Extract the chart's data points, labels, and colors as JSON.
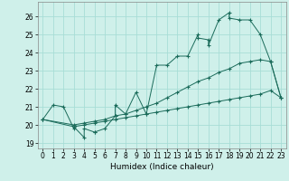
{
  "xlabel": "Humidex (Indice chaleur)",
  "bg_color": "#cff0ea",
  "grid_color": "#a8ddd6",
  "line_color": "#1a6b5a",
  "xlim": [
    -0.5,
    23.5
  ],
  "ylim": [
    18.7,
    26.8
  ],
  "yticks": [
    19,
    20,
    21,
    22,
    23,
    24,
    25,
    26
  ],
  "xticks": [
    0,
    1,
    2,
    3,
    4,
    5,
    6,
    7,
    8,
    9,
    10,
    11,
    12,
    13,
    14,
    15,
    16,
    17,
    18,
    19,
    20,
    21,
    22,
    23
  ],
  "line1_x": [
    0,
    1,
    2,
    3,
    3,
    4,
    4,
    5,
    5,
    6,
    7,
    7,
    8,
    9,
    10,
    11,
    12,
    13,
    14,
    15,
    15,
    16,
    16,
    17,
    18,
    18,
    19,
    20,
    21,
    22,
    23
  ],
  "line1_y": [
    20.3,
    21.1,
    21.0,
    19.8,
    19.9,
    19.3,
    19.8,
    19.6,
    19.6,
    19.8,
    20.5,
    21.1,
    20.6,
    21.8,
    20.6,
    23.3,
    23.3,
    23.8,
    23.8,
    25.0,
    24.8,
    24.7,
    24.4,
    25.8,
    26.2,
    25.9,
    25.8,
    25.8,
    25.0,
    23.5,
    21.5
  ],
  "line2_x": [
    0,
    3,
    4,
    5,
    6,
    7,
    8,
    9,
    10,
    11,
    12,
    13,
    14,
    15,
    16,
    17,
    18,
    19,
    20,
    21,
    22,
    23
  ],
  "line2_y": [
    20.3,
    20.0,
    20.1,
    20.2,
    20.3,
    20.5,
    20.6,
    20.8,
    21.0,
    21.2,
    21.5,
    21.8,
    22.1,
    22.4,
    22.6,
    22.9,
    23.1,
    23.4,
    23.5,
    23.6,
    23.5,
    21.5
  ],
  "line3_x": [
    0,
    3,
    4,
    5,
    6,
    7,
    8,
    9,
    10,
    11,
    12,
    13,
    14,
    15,
    16,
    17,
    18,
    19,
    20,
    21,
    22,
    23
  ],
  "line3_y": [
    20.3,
    19.9,
    20.0,
    20.1,
    20.2,
    20.3,
    20.4,
    20.5,
    20.6,
    20.7,
    20.8,
    20.9,
    21.0,
    21.1,
    21.2,
    21.3,
    21.4,
    21.5,
    21.6,
    21.7,
    21.9,
    21.5
  ]
}
